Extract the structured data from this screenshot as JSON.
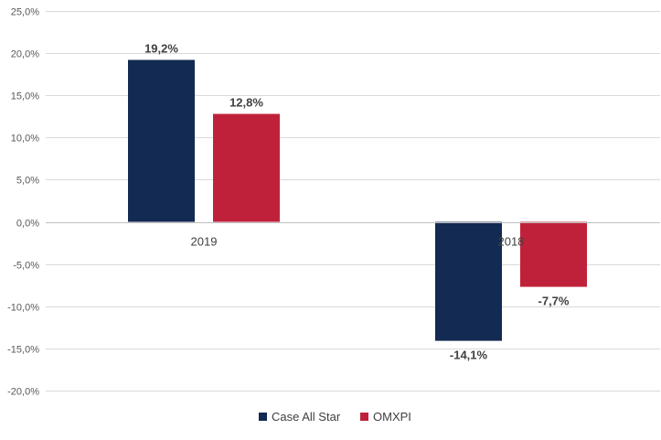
{
  "chart_data": {
    "type": "bar",
    "categories": [
      "2019",
      "2018"
    ],
    "series": [
      {
        "name": "Case All Star",
        "values": [
          19.2,
          -14.1
        ],
        "labels": [
          "19,2%",
          "-14,1%"
        ],
        "color": "#132a52"
      },
      {
        "name": "OMXPI",
        "values": [
          12.8,
          -7.7
        ],
        "labels": [
          "12,8%",
          "-7,7%"
        ],
        "color": "#c0213a"
      }
    ],
    "ylim": [
      -20,
      25
    ],
    "yticks": [
      25,
      20,
      15,
      10,
      5,
      0,
      -5,
      -10,
      -15,
      -20
    ],
    "ytick_labels": [
      "25,0%",
      "20,0%",
      "15,0%",
      "10,0%",
      "5,0%",
      "0,0%",
      "-5,0%",
      "-10,0%",
      "-15,0%",
      "-20,0%"
    ],
    "grid": true,
    "legend": "bottom",
    "gridline_color": "#d9d9d9",
    "axis_color": "#bfbfbf"
  }
}
